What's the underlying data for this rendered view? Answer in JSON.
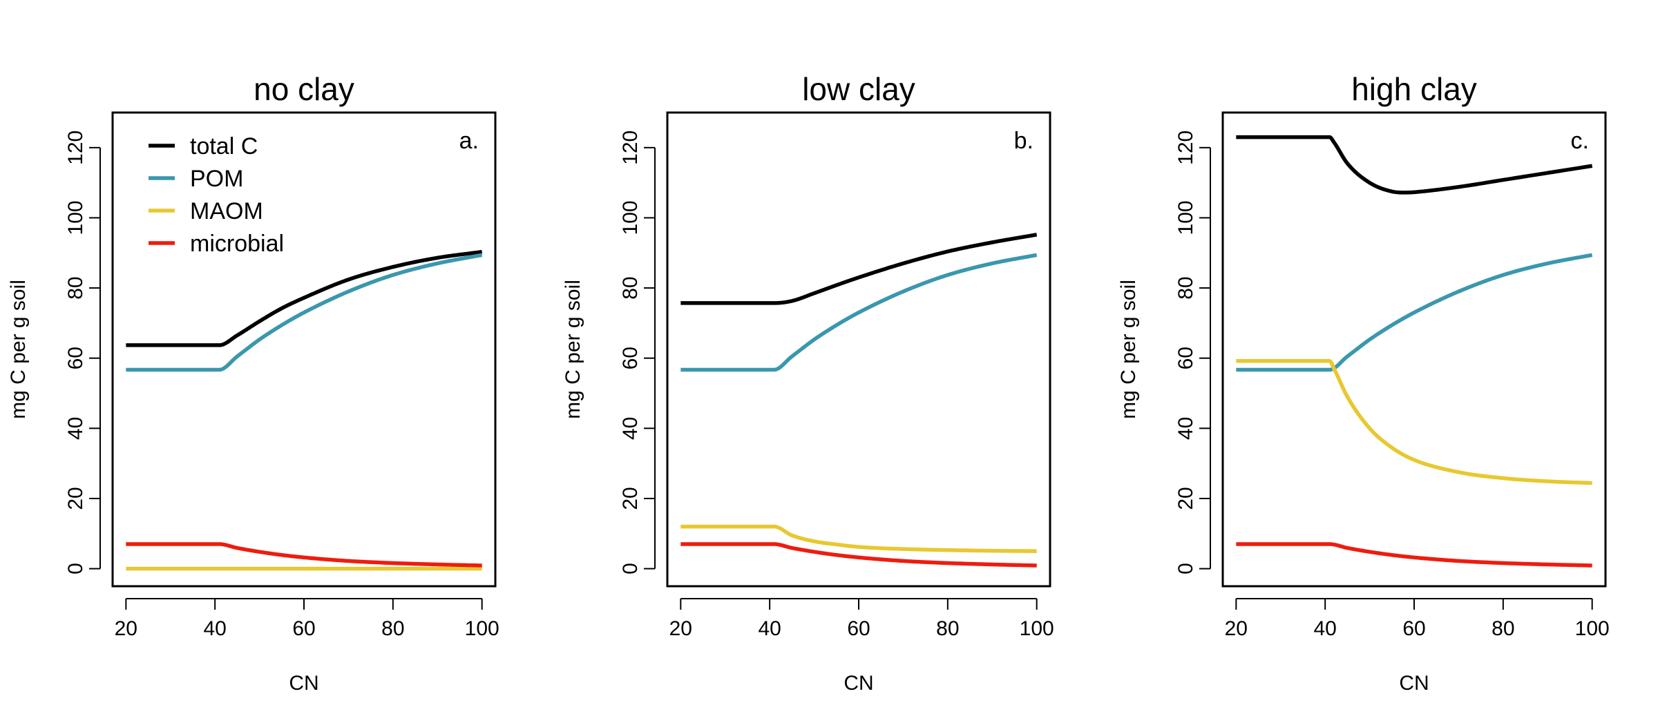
{
  "colors": {
    "total C": "#000000",
    "POM": "#3a97ae",
    "MAOM": "#e8c830",
    "microbial": "#ee1c0e"
  },
  "chart_data": [
    {
      "type": "line",
      "title": "no clay",
      "panel_letter": "a.",
      "xlabel": "CN",
      "ylabel": "mg C per g soil",
      "xlim": [
        17,
        103
      ],
      "ylim": [
        -5,
        130
      ],
      "xticks": [
        20,
        40,
        60,
        80,
        100
      ],
      "yticks": [
        0,
        20,
        40,
        60,
        80,
        100,
        120
      ],
      "legend": {
        "placement": "top-left",
        "entries": [
          "total C",
          "POM",
          "MAOM",
          "microbial"
        ]
      },
      "series": [
        {
          "name": "total C",
          "x": [
            20,
            30,
            41,
            45,
            50,
            55,
            60,
            70,
            80,
            90,
            100
          ],
          "y": [
            63.7,
            63.7,
            63.7,
            66.5,
            70.5,
            74.2,
            77.2,
            82.4,
            86.0,
            88.6,
            90.3
          ]
        },
        {
          "name": "POM",
          "x": [
            20,
            30,
            41,
            45,
            50,
            55,
            60,
            70,
            80,
            90,
            100
          ],
          "y": [
            56.7,
            56.7,
            56.7,
            60.5,
            65.3,
            69.4,
            73.0,
            79.0,
            83.7,
            87.0,
            89.4
          ]
        },
        {
          "name": "MAOM",
          "x": [
            20,
            41,
            60,
            80,
            100
          ],
          "y": [
            0,
            0,
            0,
            0,
            0
          ]
        },
        {
          "name": "microbial",
          "x": [
            20,
            30,
            41,
            45,
            50,
            55,
            60,
            70,
            80,
            90,
            100
          ],
          "y": [
            7.0,
            7.0,
            7.0,
            5.9,
            4.8,
            3.9,
            3.2,
            2.2,
            1.6,
            1.2,
            0.9
          ]
        }
      ]
    },
    {
      "type": "line",
      "title": "low clay",
      "panel_letter": "b.",
      "xlabel": "CN",
      "ylabel": "mg C per g soil",
      "xlim": [
        17,
        103
      ],
      "ylim": [
        -5,
        130
      ],
      "xticks": [
        20,
        40,
        60,
        80,
        100
      ],
      "yticks": [
        0,
        20,
        40,
        60,
        80,
        100,
        120
      ],
      "series": [
        {
          "name": "total C",
          "x": [
            20,
            30,
            41,
            45,
            50,
            55,
            60,
            70,
            80,
            90,
            100
          ],
          "y": [
            75.7,
            75.7,
            75.7,
            76.3,
            78.5,
            80.8,
            83.0,
            87.0,
            90.4,
            93.0,
            95.2
          ]
        },
        {
          "name": "POM",
          "x": [
            20,
            30,
            41,
            45,
            50,
            55,
            60,
            70,
            80,
            90,
            100
          ],
          "y": [
            56.7,
            56.7,
            56.7,
            60.5,
            65.3,
            69.4,
            73.0,
            79.0,
            83.7,
            87.0,
            89.4
          ]
        },
        {
          "name": "MAOM",
          "x": [
            20,
            30,
            41,
            45,
            50,
            55,
            60,
            70,
            80,
            90,
            100
          ],
          "y": [
            12.0,
            12.0,
            12.0,
            9.5,
            7.8,
            6.9,
            6.2,
            5.6,
            5.3,
            5.1,
            5.0
          ]
        },
        {
          "name": "microbial",
          "x": [
            20,
            30,
            41,
            45,
            50,
            55,
            60,
            70,
            80,
            90,
            100
          ],
          "y": [
            7.0,
            7.0,
            7.0,
            5.9,
            4.8,
            3.9,
            3.2,
            2.2,
            1.6,
            1.2,
            0.9
          ]
        }
      ]
    },
    {
      "type": "line",
      "title": "high clay",
      "panel_letter": "c.",
      "xlabel": "CN",
      "ylabel": "mg C per g soil",
      "xlim": [
        17,
        103
      ],
      "ylim": [
        -5,
        130
      ],
      "xticks": [
        20,
        40,
        60,
        80,
        100
      ],
      "yticks": [
        0,
        20,
        40,
        60,
        80,
        100,
        120
      ],
      "series": [
        {
          "name": "total C",
          "x": [
            20,
            30,
            40,
            41,
            42,
            45,
            50,
            55,
            58,
            60,
            70,
            80,
            90,
            100
          ],
          "y": [
            123.0,
            123.0,
            123.0,
            123.0,
            121.5,
            115.5,
            110.0,
            107.5,
            107.2,
            107.3,
            108.8,
            110.8,
            112.8,
            114.8
          ]
        },
        {
          "name": "POM",
          "x": [
            20,
            30,
            41,
            45,
            50,
            55,
            60,
            70,
            80,
            90,
            100
          ],
          "y": [
            56.7,
            56.7,
            56.7,
            60.5,
            65.3,
            69.4,
            73.0,
            79.0,
            83.7,
            87.0,
            89.4
          ]
        },
        {
          "name": "MAOM",
          "x": [
            20,
            30,
            41,
            42,
            45,
            50,
            55,
            60,
            70,
            80,
            90,
            100
          ],
          "y": [
            59.2,
            59.2,
            59.2,
            57.0,
            49.0,
            40.0,
            34.5,
            31.0,
            27.5,
            25.8,
            24.9,
            24.4
          ]
        },
        {
          "name": "microbial",
          "x": [
            20,
            30,
            41,
            45,
            50,
            55,
            60,
            70,
            80,
            90,
            100
          ],
          "y": [
            7.0,
            7.0,
            7.0,
            5.9,
            4.8,
            3.9,
            3.2,
            2.2,
            1.6,
            1.2,
            0.9
          ]
        }
      ]
    }
  ]
}
